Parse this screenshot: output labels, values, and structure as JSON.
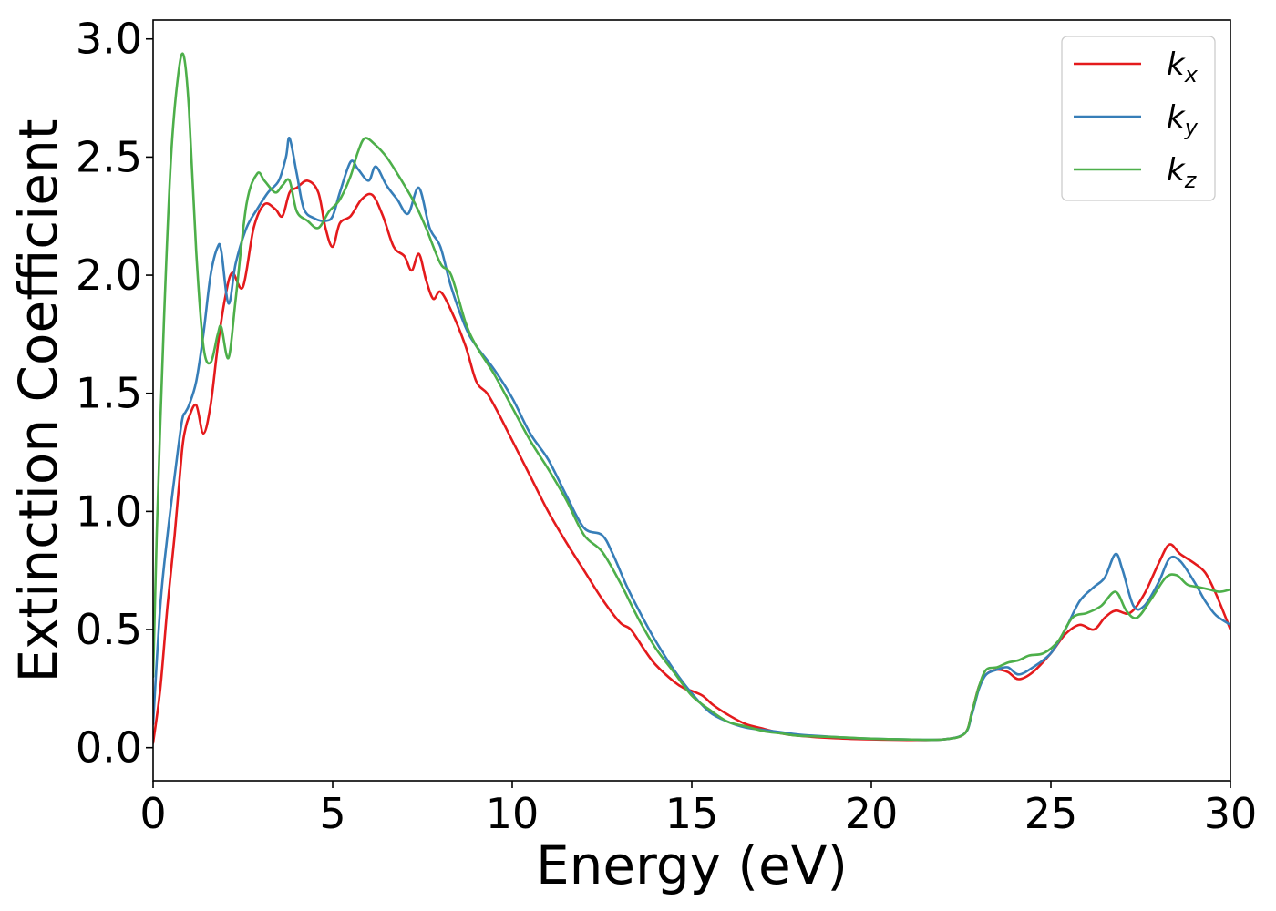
{
  "chart_data": {
    "type": "line",
    "title": "",
    "xlabel": "Energy (eV)",
    "ylabel": "Extinction Coefficient",
    "xlim": [
      0,
      30
    ],
    "ylim": [
      -0.14,
      3.08
    ],
    "xticks": [
      0,
      5,
      10,
      15,
      20,
      25,
      30
    ],
    "yticks": [
      0.0,
      0.5,
      1.0,
      1.5,
      2.0,
      2.5,
      3.0
    ],
    "xtick_labels": [
      "0",
      "5",
      "10",
      "15",
      "20",
      "25",
      "30"
    ],
    "ytick_labels": [
      "0.0",
      "0.5",
      "1.0",
      "1.5",
      "2.0",
      "2.5",
      "3.0"
    ],
    "grid": false,
    "legend_position": "top-right",
    "series": [
      {
        "name": "k_x",
        "legend_base": "k",
        "legend_sub": "x",
        "color": "#e41a1c",
        "x": [
          0,
          0.2,
          0.4,
          0.6,
          0.8,
          0.9,
          1.0,
          1.2,
          1.4,
          1.6,
          1.8,
          2.0,
          2.2,
          2.5,
          2.8,
          3.1,
          3.4,
          3.6,
          3.8,
          4.0,
          4.3,
          4.6,
          4.8,
          5.0,
          5.2,
          5.5,
          5.8,
          6.1,
          6.4,
          6.7,
          7.0,
          7.2,
          7.4,
          7.6,
          7.8,
          8.0,
          8.3,
          8.7,
          9.0,
          9.3,
          9.6,
          10.0,
          10.5,
          11.0,
          11.5,
          12.0,
          12.5,
          13.0,
          13.3,
          13.7,
          14.0,
          14.5,
          14.8,
          15.0,
          15.3,
          15.6,
          16.0,
          16.5,
          17.0,
          17.5,
          18.0,
          19.0,
          20.0,
          21.0,
          22.0,
          22.6,
          22.8,
          23.0,
          23.2,
          23.5,
          23.8,
          24.1,
          24.5,
          25.0,
          25.4,
          25.8,
          26.2,
          26.5,
          26.8,
          27.2,
          27.6,
          28.0,
          28.3,
          28.6,
          29.0,
          29.3,
          29.6,
          30.0
        ],
        "y": [
          0.02,
          0.25,
          0.6,
          0.9,
          1.25,
          1.35,
          1.4,
          1.45,
          1.33,
          1.45,
          1.7,
          1.9,
          2.01,
          1.95,
          2.2,
          2.3,
          2.28,
          2.25,
          2.35,
          2.37,
          2.4,
          2.35,
          2.2,
          2.12,
          2.22,
          2.25,
          2.32,
          2.34,
          2.25,
          2.12,
          2.08,
          2.02,
          2.09,
          1.98,
          1.9,
          1.93,
          1.85,
          1.7,
          1.55,
          1.5,
          1.42,
          1.3,
          1.15,
          1.0,
          0.87,
          0.75,
          0.63,
          0.53,
          0.5,
          0.41,
          0.35,
          0.28,
          0.25,
          0.24,
          0.22,
          0.18,
          0.14,
          0.1,
          0.08,
          0.06,
          0.05,
          0.04,
          0.035,
          0.033,
          0.035,
          0.06,
          0.15,
          0.26,
          0.31,
          0.33,
          0.32,
          0.29,
          0.32,
          0.4,
          0.48,
          0.52,
          0.5,
          0.55,
          0.58,
          0.57,
          0.65,
          0.78,
          0.86,
          0.82,
          0.78,
          0.74,
          0.65,
          0.5
        ]
      },
      {
        "name": "k_y",
        "legend_base": "k",
        "legend_sub": "y",
        "color": "#377eb8",
        "x": [
          0,
          0.2,
          0.4,
          0.6,
          0.8,
          0.9,
          1.0,
          1.2,
          1.4,
          1.6,
          1.8,
          1.9,
          2.1,
          2.3,
          2.6,
          2.9,
          3.2,
          3.5,
          3.7,
          3.8,
          4.0,
          4.2,
          4.5,
          4.8,
          5.0,
          5.2,
          5.5,
          5.7,
          6.0,
          6.2,
          6.5,
          6.8,
          7.1,
          7.4,
          7.7,
          8.0,
          8.3,
          8.7,
          9.0,
          9.5,
          10.0,
          10.5,
          11.0,
          11.5,
          12.0,
          12.5,
          12.8,
          13.2,
          13.6,
          14.0,
          14.5,
          15.0,
          15.5,
          16.0,
          16.5,
          17.0,
          17.5,
          18.0,
          19.0,
          20.0,
          21.0,
          22.0,
          22.6,
          22.8,
          23.0,
          23.2,
          23.5,
          23.8,
          24.1,
          24.5,
          25.0,
          25.4,
          25.8,
          26.2,
          26.5,
          26.8,
          27.0,
          27.3,
          27.6,
          28.0,
          28.3,
          28.6,
          29.0,
          29.3,
          29.6,
          30.0
        ],
        "y": [
          0.1,
          0.6,
          0.9,
          1.15,
          1.38,
          1.42,
          1.45,
          1.55,
          1.75,
          2.0,
          2.12,
          2.1,
          1.88,
          2.05,
          2.2,
          2.28,
          2.35,
          2.4,
          2.5,
          2.58,
          2.43,
          2.28,
          2.24,
          2.23,
          2.25,
          2.35,
          2.48,
          2.45,
          2.4,
          2.46,
          2.38,
          2.32,
          2.26,
          2.37,
          2.2,
          2.12,
          1.95,
          1.78,
          1.7,
          1.6,
          1.48,
          1.33,
          1.22,
          1.07,
          0.93,
          0.9,
          0.82,
          0.68,
          0.56,
          0.45,
          0.33,
          0.23,
          0.15,
          0.11,
          0.085,
          0.075,
          0.065,
          0.055,
          0.045,
          0.038,
          0.035,
          0.035,
          0.06,
          0.14,
          0.25,
          0.31,
          0.33,
          0.34,
          0.31,
          0.34,
          0.4,
          0.5,
          0.62,
          0.68,
          0.72,
          0.82,
          0.75,
          0.6,
          0.6,
          0.7,
          0.8,
          0.79,
          0.7,
          0.62,
          0.56,
          0.52
        ]
      },
      {
        "name": "k_z",
        "legend_base": "k",
        "legend_sub": "z",
        "color": "#4daf4a",
        "x": [
          0,
          0.1,
          0.3,
          0.5,
          0.7,
          0.85,
          1.0,
          1.2,
          1.4,
          1.6,
          1.8,
          1.9,
          2.1,
          2.3,
          2.6,
          2.9,
          3.1,
          3.4,
          3.6,
          3.8,
          4.0,
          4.3,
          4.6,
          4.9,
          5.2,
          5.5,
          5.7,
          5.9,
          6.2,
          6.5,
          6.8,
          7.0,
          7.3,
          7.6,
          8.0,
          8.3,
          8.7,
          9.0,
          9.5,
          10.0,
          10.5,
          11.0,
          11.5,
          12.0,
          12.5,
          13.0,
          13.5,
          14.0,
          14.5,
          15.0,
          15.5,
          16.0,
          16.5,
          17.0,
          17.5,
          18.0,
          19.0,
          20.0,
          21.0,
          22.0,
          22.6,
          22.8,
          23.0,
          23.2,
          23.5,
          23.8,
          24.1,
          24.4,
          24.8,
          25.2,
          25.6,
          26.0,
          26.4,
          26.8,
          27.1,
          27.4,
          27.8,
          28.2,
          28.5,
          28.8,
          29.1,
          29.4,
          29.7,
          30.0
        ],
        "y": [
          0.3,
          0.9,
          1.8,
          2.5,
          2.85,
          2.93,
          2.7,
          2.1,
          1.7,
          1.63,
          1.75,
          1.78,
          1.65,
          1.9,
          2.3,
          2.43,
          2.4,
          2.35,
          2.38,
          2.4,
          2.27,
          2.23,
          2.2,
          2.27,
          2.32,
          2.42,
          2.52,
          2.58,
          2.55,
          2.5,
          2.43,
          2.38,
          2.3,
          2.2,
          2.05,
          2.0,
          1.8,
          1.7,
          1.58,
          1.44,
          1.3,
          1.18,
          1.05,
          0.9,
          0.83,
          0.7,
          0.55,
          0.42,
          0.32,
          0.22,
          0.16,
          0.11,
          0.09,
          0.07,
          0.06,
          0.05,
          0.045,
          0.038,
          0.035,
          0.035,
          0.06,
          0.15,
          0.26,
          0.33,
          0.34,
          0.36,
          0.37,
          0.39,
          0.4,
          0.45,
          0.55,
          0.57,
          0.6,
          0.66,
          0.58,
          0.55,
          0.63,
          0.72,
          0.73,
          0.69,
          0.68,
          0.67,
          0.66,
          0.67
        ]
      }
    ]
  }
}
